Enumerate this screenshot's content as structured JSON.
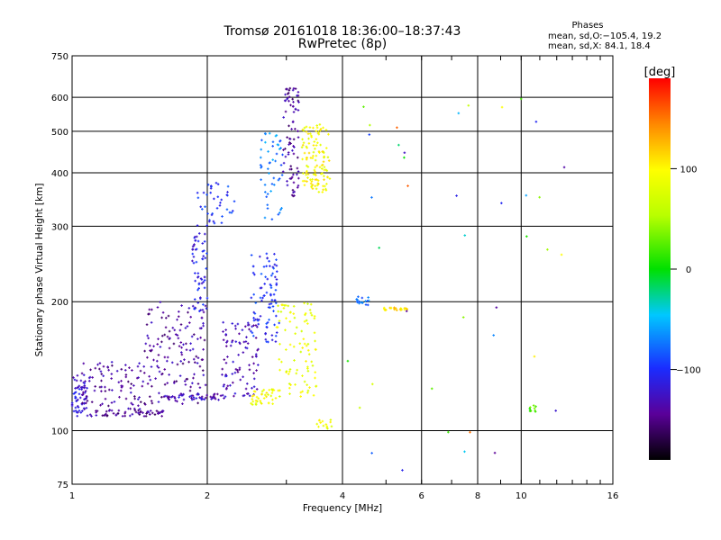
{
  "chart_data": {
    "type": "scatter",
    "title": "Tromsø 20161018 18:36:00–18:37:43",
    "subtitle": "RwPretec (8p)",
    "phases_title": "Phases",
    "phases_o": "mean, sd,O:−105.4, 19.2",
    "phases_x": "mean, sd,X:  84.1, 18.4",
    "xlabel": "Frequency [MHz]",
    "ylabel": "Stationary phase Virtual Height [km]",
    "x_scale": "log",
    "y_scale": "log",
    "xlim": [
      1,
      16
    ],
    "ylim": [
      75,
      750
    ],
    "x_ticks": [
      1,
      2,
      4,
      6,
      8,
      10,
      16
    ],
    "x_tick_labels": [
      "1",
      "2",
      "4",
      "6",
      "8",
      "10",
      "16"
    ],
    "y_ticks": [
      75,
      100,
      200,
      300,
      400,
      500,
      600,
      750
    ],
    "y_tick_labels": [
      "75",
      "100",
      "200",
      "300",
      "400",
      "500",
      "600",
      "750"
    ],
    "grid": true,
    "colorbar": {
      "label": "[deg]",
      "range": [
        -190,
        190
      ],
      "ticks": [
        -100,
        0,
        100
      ],
      "tick_labels": [
        "−100",
        "0",
        "100"
      ]
    },
    "series_clusters": [
      {
        "f_range": [
          1.0,
          1.08
        ],
        "h_range": [
          108,
          135
        ],
        "phase": -120,
        "n": 60
      },
      {
        "f_range": [
          1.08,
          1.6
        ],
        "h_range": [
          108,
          112
        ],
        "phase": -145,
        "n": 60
      },
      {
        "f_range": [
          1.05,
          1.45
        ],
        "h_range": [
          112,
          145
        ],
        "phase": -140,
        "n": 90
      },
      {
        "f_range": [
          1.45,
          2.0
        ],
        "h_range": [
          115,
          200
        ],
        "phase": -140,
        "n": 150
      },
      {
        "f_range": [
          1.6,
          2.2
        ],
        "h_range": [
          118,
          122
        ],
        "phase": -130,
        "n": 50
      },
      {
        "f_range": [
          1.85,
          2.0
        ],
        "h_range": [
          190,
          290
        ],
        "phase": -110,
        "n": 60
      },
      {
        "f_range": [
          1.9,
          2.3
        ],
        "h_range": [
          300,
          380
        ],
        "phase": -100,
        "n": 40
      },
      {
        "f_range": [
          2.15,
          2.6
        ],
        "h_range": [
          120,
          180
        ],
        "phase": -130,
        "n": 90
      },
      {
        "f_range": [
          2.5,
          2.9
        ],
        "h_range": [
          160,
          260
        ],
        "phase": -100,
        "n": 90
      },
      {
        "f_range": [
          2.5,
          2.9
        ],
        "h_range": [
          115,
          125
        ],
        "phase": 90,
        "n": 40
      },
      {
        "f_range": [
          2.85,
          3.5
        ],
        "h_range": [
          120,
          200
        ],
        "phase": 85,
        "n": 90
      },
      {
        "f_range": [
          2.6,
          2.95
        ],
        "h_range": [
          300,
          500
        ],
        "phase": -70,
        "n": 50
      },
      {
        "f_range": [
          2.95,
          3.2
        ],
        "h_range": [
          350,
          640
        ],
        "phase": -140,
        "n": 80
      },
      {
        "f_range": [
          3.25,
          3.75
        ],
        "h_range": [
          360,
          520
        ],
        "phase": 95,
        "n": 120
      },
      {
        "f_range": [
          3.5,
          3.8
        ],
        "h_range": [
          100,
          106
        ],
        "phase": 90,
        "n": 14
      },
      {
        "f_range": [
          4.3,
          4.6
        ],
        "h_range": [
          196,
          206
        ],
        "phase": -80,
        "n": 18
      },
      {
        "f_range": [
          4.9,
          5.6
        ],
        "h_range": [
          191,
          194
        ],
        "phase": 110,
        "n": 22
      },
      {
        "f_range": [
          10.4,
          10.8
        ],
        "h_range": [
          110,
          116
        ],
        "phase": 20,
        "n": 10
      },
      {
        "f_range": [
          4.0,
          12.5
        ],
        "h_range": [
          80,
          600
        ],
        "phase": 0,
        "n": 40,
        "sparse": true
      }
    ]
  }
}
